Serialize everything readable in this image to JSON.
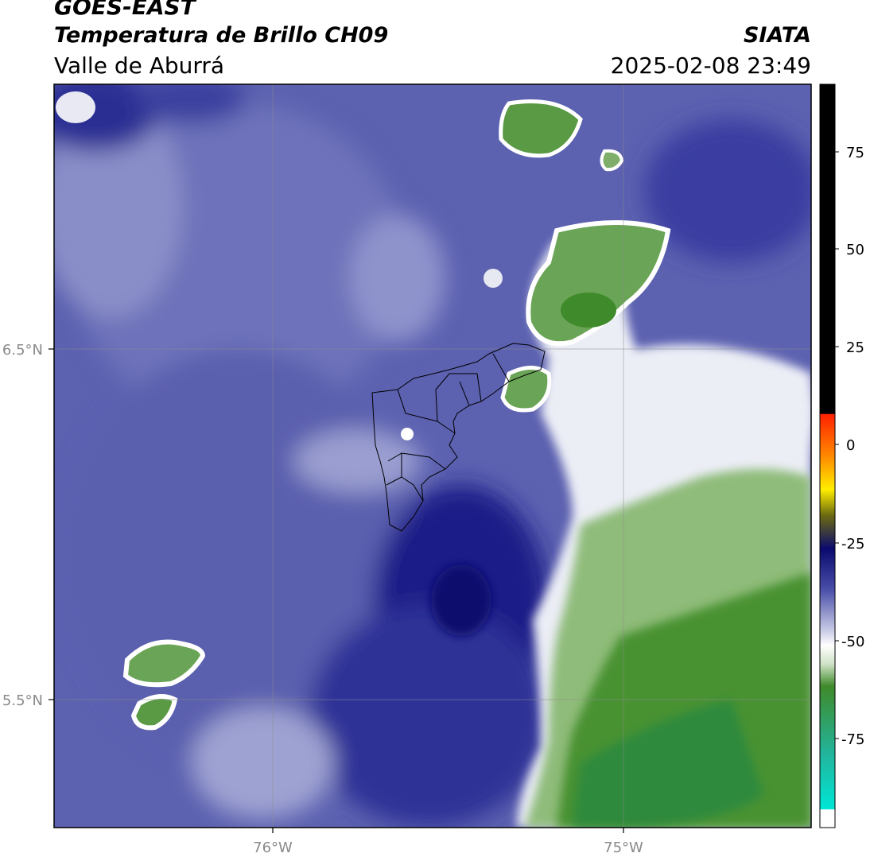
{
  "header": {
    "satellite": "GOES-EAST",
    "product": "Temperatura de Brillo CH09",
    "organization": "SIATA",
    "region": "Valle de Aburrá",
    "datetime": "2025-02-08 23:49"
  },
  "map": {
    "lat_labels": [
      "6.5°N",
      "5.5°N"
    ],
    "lon_labels": [
      "76°W",
      "75°W"
    ],
    "gridlines": true
  },
  "colorbar": {
    "ticks": [
      "75",
      "50",
      "25",
      "0",
      "-25",
      "-50",
      "-75"
    ],
    "colors": {
      "black_top": "#000000",
      "red": "#ff2200",
      "orange": "#ff8800",
      "yellow": "#ffee00",
      "olive": "#6b6a10",
      "navy": "#0a0a6e",
      "blue_mid": "#4a4fa8",
      "lavender": "#c9cbe6",
      "white": "#ffffff",
      "pale_green": "#cfe2c6",
      "green": "#3f8a2a",
      "teal": "#22b49a",
      "cyan": "#00e6d6"
    }
  }
}
